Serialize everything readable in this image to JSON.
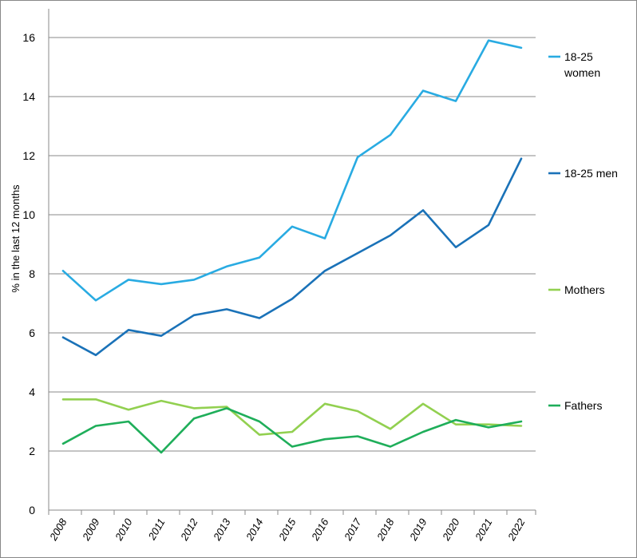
{
  "chart_data": {
    "type": "line",
    "title": "",
    "xlabel": "",
    "ylabel": "% in the last 12 months",
    "ylim": [
      0,
      17
    ],
    "yticks": [
      0,
      2,
      4,
      6,
      8,
      10,
      12,
      14,
      16
    ],
    "grid": "horizontal",
    "legend": "right",
    "x": [
      "2008",
      "2009",
      "2010",
      "2011",
      "2012",
      "2013",
      "2014",
      "2015",
      "2016",
      "2017",
      "2018",
      "2019",
      "2020",
      "2021",
      "2022"
    ],
    "series": [
      {
        "name": "18-25 women",
        "legend_lines": [
          "18-25",
          "women"
        ],
        "color": "#29abe2",
        "values": [
          8.1,
          7.1,
          7.8,
          7.65,
          7.8,
          8.25,
          8.55,
          9.6,
          9.2,
          11.95,
          12.7,
          14.2,
          13.85,
          15.9,
          15.65
        ]
      },
      {
        "name": "18-25 men",
        "legend_lines": [
          "18-25 men"
        ],
        "color": "#1a72b8",
        "values": [
          5.85,
          5.25,
          6.1,
          5.9,
          6.6,
          6.8,
          6.5,
          7.15,
          8.1,
          8.7,
          9.3,
          10.15,
          8.9,
          9.65,
          11.9
        ]
      },
      {
        "name": "Mothers",
        "legend_lines": [
          "Mothers"
        ],
        "color": "#92d050",
        "values": [
          3.75,
          3.75,
          3.4,
          3.7,
          3.45,
          3.5,
          2.55,
          2.65,
          3.6,
          3.35,
          2.75,
          3.6,
          2.9,
          2.9,
          2.85
        ]
      },
      {
        "name": "Fathers",
        "legend_lines": [
          "Fathers"
        ],
        "color": "#1fae5a",
        "values": [
          2.25,
          2.85,
          3.0,
          1.95,
          3.1,
          3.45,
          3.0,
          2.15,
          2.4,
          2.5,
          2.15,
          2.65,
          3.05,
          2.8,
          3.0
        ]
      }
    ]
  }
}
